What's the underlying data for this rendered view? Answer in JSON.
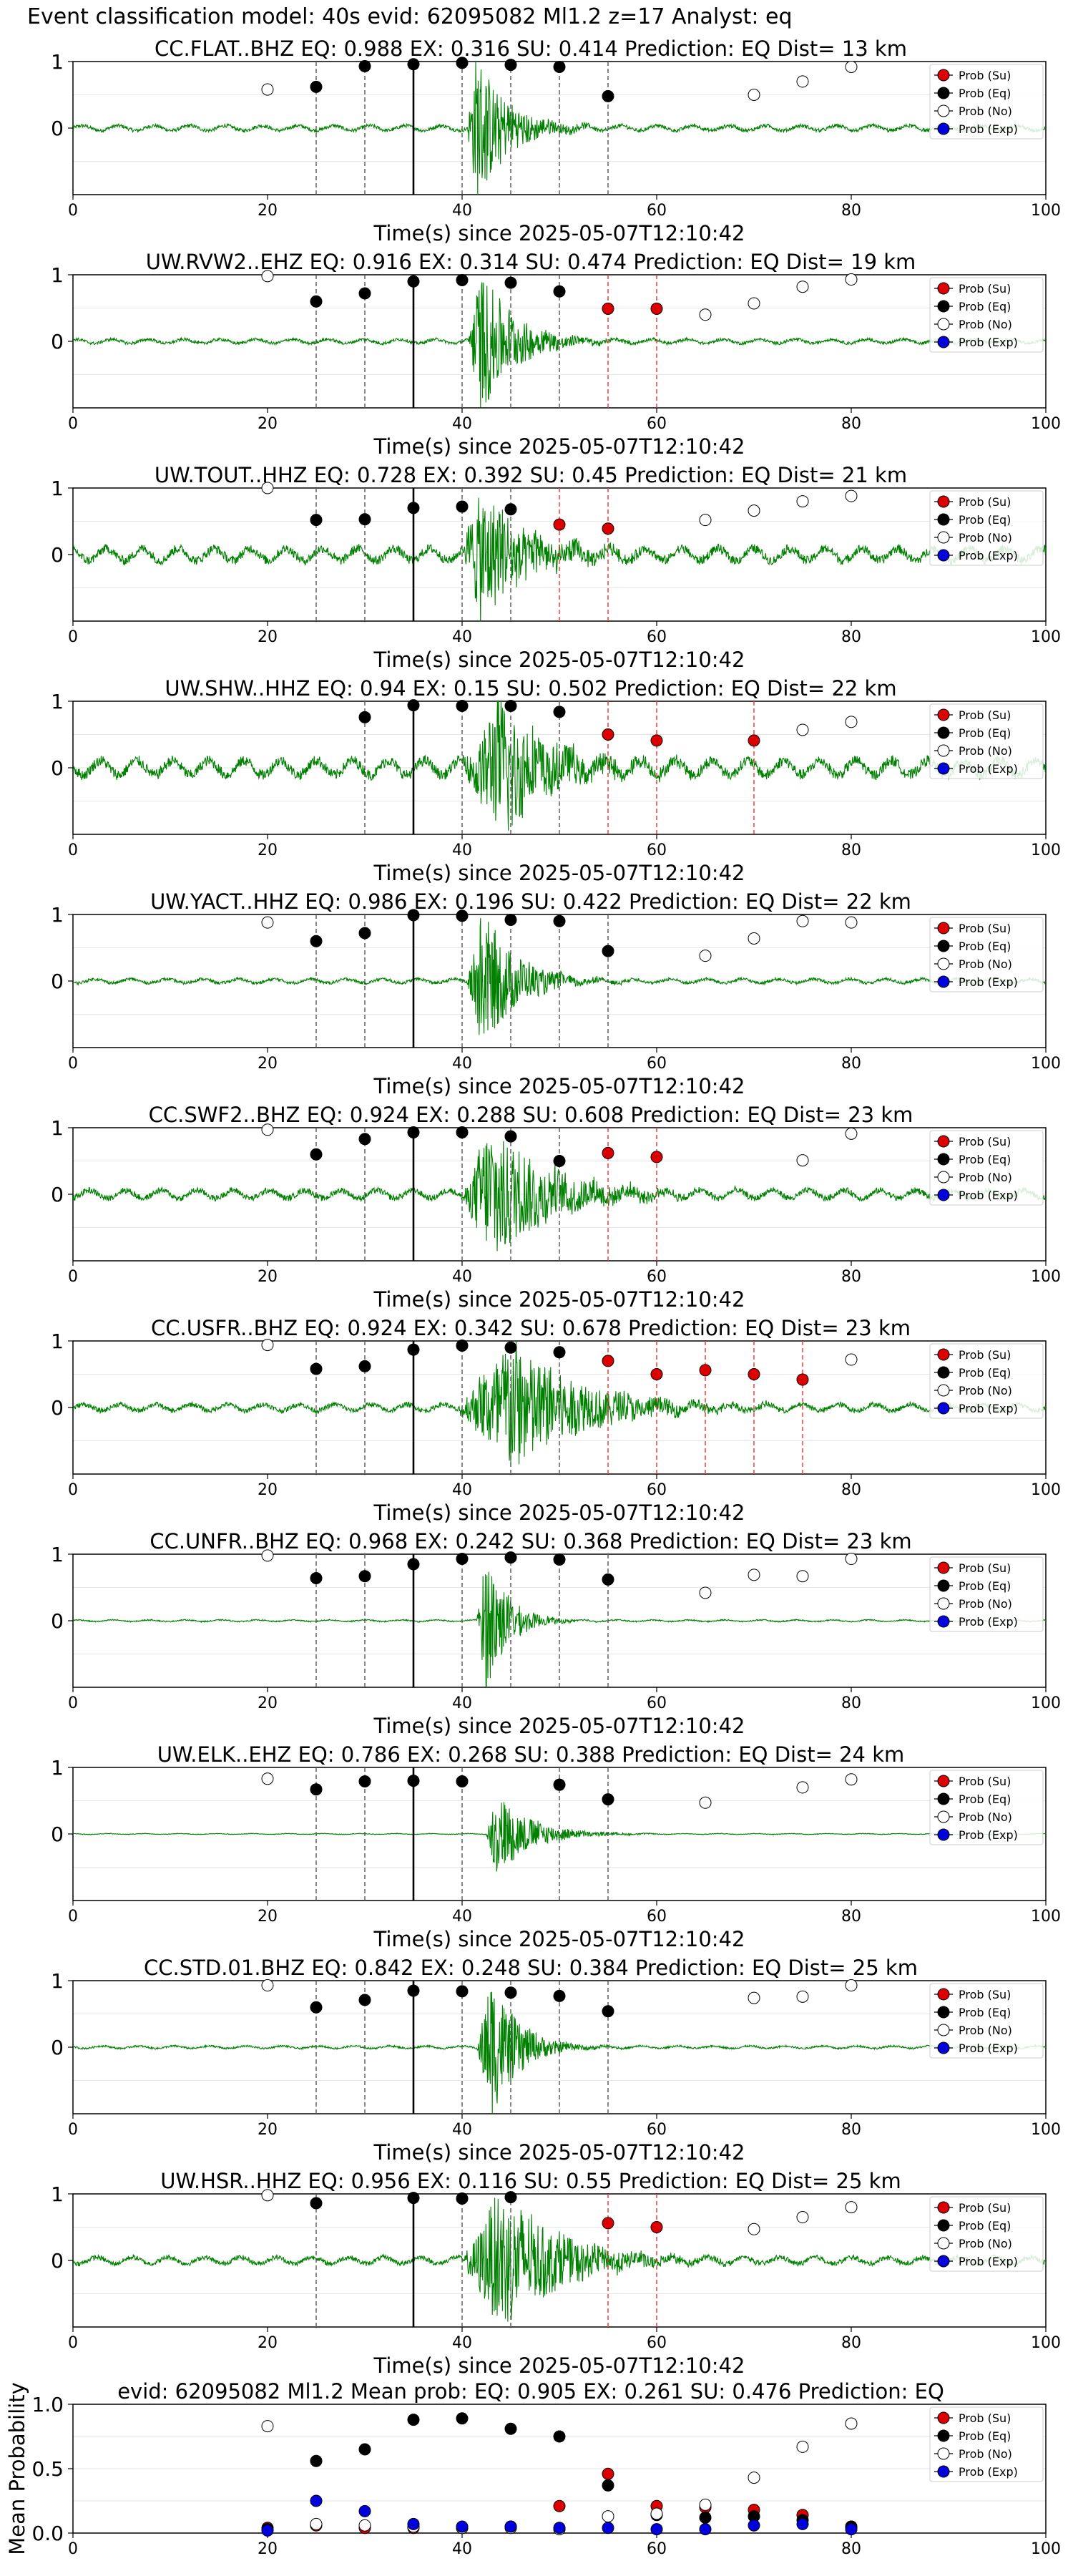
{
  "figure": {
    "title": "Event classification model: 40s evid: 62095082 Ml1.2 z=17 Analyst: eq"
  },
  "colors": {
    "waveform": "#008000",
    "su": "#dd0000",
    "eq": "#000000",
    "no": "#ffffff",
    "exp": "#0000dd",
    "eq_line": "#555555",
    "su_line": "#ee3333",
    "p_line": "#000000"
  },
  "legend": {
    "placement": "top-right",
    "entries": [
      "Prob (Su)",
      "Prob (Eq)",
      "Prob (No)",
      "Prob (Exp)"
    ]
  },
  "chart_data": [
    {
      "type": "scatter",
      "title": "CC.FLAT..BHZ   EQ: 0.988  EX: 0.316  SU: 0.414   Prediction: EQ    Dist= 13 km",
      "xlabel": "Time(s) since 2025-05-07T12:10:42",
      "xlim": [
        0,
        100
      ],
      "ylim": [
        -1,
        1
      ],
      "yticks": [
        "1",
        "0"
      ],
      "xticks": [
        "0",
        "20",
        "40",
        "60",
        "80",
        "100"
      ],
      "grid": "horizontal",
      "p_arrival": 35,
      "burst": {
        "start": 40.5,
        "peak": 41.5,
        "amp": 1.05,
        "decay": 3.2,
        "noise": 0.06
      },
      "eq_points": [
        [
          25,
          0.62
        ],
        [
          30,
          0.93
        ],
        [
          35,
          0.96
        ],
        [
          40,
          0.98
        ],
        [
          45,
          0.95
        ],
        [
          50,
          0.92
        ],
        [
          55,
          0.48
        ]
      ],
      "su_points": [],
      "no_points": [
        [
          20,
          0.58
        ],
        [
          70,
          0.5
        ],
        [
          75,
          0.7
        ],
        [
          80,
          0.92
        ]
      ],
      "eq_lines": [
        25,
        30,
        40,
        45,
        50,
        55
      ],
      "su_lines": []
    },
    {
      "type": "scatter",
      "title": "UW.RVW2..EHZ   EQ: 0.916  EX: 0.314  SU: 0.474   Prediction: EQ    Dist= 19 km",
      "xlabel": "Time(s) since 2025-05-07T12:10:42",
      "xlim": [
        0,
        100
      ],
      "ylim": [
        -1,
        1
      ],
      "yticks": [
        "1",
        "0"
      ],
      "xticks": [
        "0",
        "20",
        "40",
        "60",
        "80",
        "100"
      ],
      "grid": "horizontal",
      "p_arrival": 35,
      "burst": {
        "start": 40.5,
        "peak": 42,
        "amp": 1.0,
        "decay": 3.5,
        "noise": 0.05
      },
      "eq_points": [
        [
          25,
          0.6
        ],
        [
          30,
          0.72
        ],
        [
          35,
          0.9
        ],
        [
          40,
          0.92
        ],
        [
          45,
          0.88
        ],
        [
          50,
          0.75
        ]
      ],
      "su_points": [
        [
          55,
          0.49
        ],
        [
          60,
          0.49
        ]
      ],
      "no_points": [
        [
          20,
          0.98
        ],
        [
          65,
          0.4
        ],
        [
          70,
          0.57
        ],
        [
          75,
          0.82
        ],
        [
          80,
          0.93
        ]
      ],
      "eq_lines": [
        25,
        30,
        40,
        45,
        50
      ],
      "su_lines": [
        55,
        60
      ]
    },
    {
      "type": "scatter",
      "title": "UW.TOUT..HHZ   EQ: 0.728  EX: 0.392  SU: 0.45   Prediction: EQ    Dist= 21 km",
      "xlabel": "Time(s) since 2025-05-07T12:10:42",
      "xlim": [
        0,
        100
      ],
      "ylim": [
        -1,
        1
      ],
      "yticks": [
        "1",
        "0"
      ],
      "xticks": [
        "0",
        "20",
        "40",
        "60",
        "80",
        "100"
      ],
      "grid": "horizontal",
      "p_arrival": 35,
      "burst": {
        "start": 40,
        "peak": 42,
        "amp": 1.0,
        "decay": 4.5,
        "noise": 0.15
      },
      "eq_points": [
        [
          25,
          0.52
        ],
        [
          30,
          0.53
        ],
        [
          35,
          0.7
        ],
        [
          40,
          0.72
        ],
        [
          45,
          0.68
        ]
      ],
      "su_points": [
        [
          50,
          0.45
        ],
        [
          55,
          0.39
        ]
      ],
      "no_points": [
        [
          20,
          1.0
        ],
        [
          65,
          0.52
        ],
        [
          70,
          0.66
        ],
        [
          75,
          0.8
        ],
        [
          80,
          0.88
        ]
      ],
      "eq_lines": [
        25,
        30,
        40,
        45
      ],
      "su_lines": [
        50,
        55
      ]
    },
    {
      "type": "scatter",
      "title": "UW.SHW..HHZ   EQ: 0.94  EX: 0.15  SU: 0.502   Prediction: EQ    Dist= 22 km",
      "xlabel": "Time(s) since 2025-05-07T12:10:42",
      "xlim": [
        0,
        100
      ],
      "ylim": [
        -1,
        1
      ],
      "yticks": [
        "1",
        "0"
      ],
      "xticks": [
        "0",
        "20",
        "40",
        "60",
        "80",
        "100"
      ],
      "grid": "horizontal",
      "p_arrival": 35,
      "burst": {
        "start": 40,
        "peak": 44,
        "amp": 1.0,
        "decay": 5,
        "noise": 0.18
      },
      "eq_points": [
        [
          30,
          0.76
        ],
        [
          35,
          0.94
        ],
        [
          40,
          0.93
        ],
        [
          45,
          0.93
        ],
        [
          50,
          0.84
        ]
      ],
      "su_points": [
        [
          55,
          0.5
        ],
        [
          60,
          0.41
        ],
        [
          70,
          0.41
        ]
      ],
      "no_points": [
        [
          75,
          0.57
        ],
        [
          80,
          0.69
        ]
      ],
      "eq_lines": [
        30,
        40,
        45,
        50
      ],
      "su_lines": [
        55,
        60,
        70
      ]
    },
    {
      "type": "scatter",
      "title": "UW.YACT..HHZ   EQ: 0.986  EX: 0.196  SU: 0.422   Prediction: EQ    Dist= 22 km",
      "xlabel": "Time(s) since 2025-05-07T12:10:42",
      "xlim": [
        0,
        100
      ],
      "ylim": [
        -1,
        1
      ],
      "yticks": [
        "1",
        "0"
      ],
      "xticks": [
        "0",
        "20",
        "40",
        "60",
        "80",
        "100"
      ],
      "grid": "horizontal",
      "p_arrival": 35,
      "burst": {
        "start": 40.5,
        "peak": 42,
        "amp": 1.0,
        "decay": 3.5,
        "noise": 0.05
      },
      "eq_points": [
        [
          25,
          0.6
        ],
        [
          30,
          0.72
        ],
        [
          35,
          0.99
        ],
        [
          40,
          0.98
        ],
        [
          45,
          0.92
        ],
        [
          50,
          0.9
        ],
        [
          55,
          0.45
        ]
      ],
      "su_points": [],
      "no_points": [
        [
          20,
          0.88
        ],
        [
          65,
          0.38
        ],
        [
          70,
          0.64
        ],
        [
          75,
          0.9
        ],
        [
          80,
          0.88
        ]
      ],
      "eq_lines": [
        25,
        30,
        40,
        45,
        50,
        55
      ],
      "su_lines": []
    },
    {
      "type": "scatter",
      "title": "CC.SWF2..BHZ   EQ: 0.924  EX: 0.288  SU: 0.608   Prediction: EQ    Dist= 23 km",
      "xlabel": "Time(s) since 2025-05-07T12:10:42",
      "xlim": [
        0,
        100
      ],
      "ylim": [
        -1,
        1
      ],
      "yticks": [
        "1",
        "0"
      ],
      "xticks": [
        "0",
        "20",
        "40",
        "60",
        "80",
        "100"
      ],
      "grid": "horizontal",
      "p_arrival": 35,
      "burst": {
        "start": 40,
        "peak": 43,
        "amp": 1.0,
        "decay": 6,
        "noise": 0.1
      },
      "eq_points": [
        [
          25,
          0.6
        ],
        [
          30,
          0.83
        ],
        [
          35,
          0.93
        ],
        [
          40,
          0.93
        ],
        [
          45,
          0.87
        ],
        [
          50,
          0.5
        ]
      ],
      "su_points": [
        [
          55,
          0.62
        ],
        [
          60,
          0.56
        ]
      ],
      "no_points": [
        [
          20,
          0.97
        ],
        [
          75,
          0.51
        ],
        [
          80,
          0.91
        ]
      ],
      "eq_lines": [
        25,
        30,
        40,
        45,
        50
      ],
      "su_lines": [
        55,
        60
      ]
    },
    {
      "type": "scatter",
      "title": "CC.USFR..BHZ   EQ: 0.924  EX: 0.342  SU: 0.678   Prediction: EQ    Dist= 23 km",
      "xlabel": "Time(s) since 2025-05-07T12:10:42",
      "xlim": [
        0,
        100
      ],
      "ylim": [
        -1,
        1
      ],
      "yticks": [
        "1",
        "0"
      ],
      "xticks": [
        "0",
        "20",
        "40",
        "60",
        "80",
        "100"
      ],
      "grid": "horizontal",
      "p_arrival": 35,
      "burst": {
        "start": 39.5,
        "peak": 45,
        "amp": 1.0,
        "decay": 7,
        "noise": 0.08
      },
      "eq_points": [
        [
          25,
          0.58
        ],
        [
          30,
          0.62
        ],
        [
          35,
          0.87
        ],
        [
          40,
          0.93
        ],
        [
          45,
          0.9
        ],
        [
          50,
          0.83
        ]
      ],
      "su_points": [
        [
          55,
          0.7
        ],
        [
          60,
          0.5
        ],
        [
          65,
          0.56
        ],
        [
          70,
          0.5
        ],
        [
          75,
          0.42
        ]
      ],
      "no_points": [
        [
          20,
          0.94
        ],
        [
          80,
          0.72
        ]
      ],
      "eq_lines": [
        25,
        30,
        40,
        45,
        50
      ],
      "su_lines": [
        55,
        60,
        65,
        70,
        75
      ]
    },
    {
      "type": "scatter",
      "title": "CC.UNFR..BHZ   EQ: 0.968  EX: 0.242  SU: 0.368   Prediction: EQ    Dist= 23 km",
      "xlabel": "Time(s) since 2025-05-07T12:10:42",
      "xlim": [
        0,
        100
      ],
      "ylim": [
        -1,
        1
      ],
      "yticks": [
        "1",
        "0"
      ],
      "xticks": [
        "0",
        "20",
        "40",
        "60",
        "80",
        "100"
      ],
      "grid": "horizontal",
      "p_arrival": 35,
      "burst": {
        "start": 41.5,
        "peak": 42.5,
        "amp": 1.0,
        "decay": 2.2,
        "noise": 0.02
      },
      "eq_points": [
        [
          25,
          0.64
        ],
        [
          30,
          0.67
        ],
        [
          35,
          0.85
        ],
        [
          40,
          0.93
        ],
        [
          45,
          0.95
        ],
        [
          50,
          0.92
        ],
        [
          55,
          0.62
        ]
      ],
      "su_points": [],
      "no_points": [
        [
          20,
          0.98
        ],
        [
          65,
          0.42
        ],
        [
          70,
          0.69
        ],
        [
          75,
          0.67
        ],
        [
          80,
          0.93
        ]
      ],
      "eq_lines": [
        25,
        30,
        40,
        45,
        50,
        55
      ],
      "su_lines": []
    },
    {
      "type": "scatter",
      "title": "UW.ELK..EHZ   EQ: 0.786  EX: 0.268  SU: 0.388   Prediction: EQ    Dist= 24 km",
      "xlabel": "Time(s) since 2025-05-07T12:10:42",
      "xlim": [
        0,
        100
      ],
      "ylim": [
        -1,
        1
      ],
      "yticks": [
        "1",
        "0"
      ],
      "xticks": [
        "0",
        "20",
        "40",
        "60",
        "80",
        "100"
      ],
      "grid": "horizontal",
      "p_arrival": 35,
      "burst": {
        "start": 42.5,
        "peak": 43.5,
        "amp": 0.6,
        "decay": 3.5,
        "noise": 0.01
      },
      "eq_points": [
        [
          25,
          0.67
        ],
        [
          30,
          0.79
        ],
        [
          35,
          0.8
        ],
        [
          40,
          0.79
        ],
        [
          50,
          0.74
        ],
        [
          55,
          0.52
        ]
      ],
      "su_points": [],
      "no_points": [
        [
          20,
          0.83
        ],
        [
          65,
          0.47
        ],
        [
          75,
          0.7
        ],
        [
          80,
          0.82
        ]
      ],
      "eq_lines": [
        25,
        30,
        40,
        50,
        55
      ],
      "su_lines": []
    },
    {
      "type": "scatter",
      "title": "CC.STD.01.BHZ   EQ: 0.842  EX: 0.248  SU: 0.384   Prediction: EQ    Dist= 25 km",
      "xlabel": "Time(s) since 2025-05-07T12:10:42",
      "xlim": [
        0,
        100
      ],
      "ylim": [
        -1,
        1
      ],
      "yticks": [
        "1",
        "0"
      ],
      "xticks": [
        "0",
        "20",
        "40",
        "60",
        "80",
        "100"
      ],
      "grid": "horizontal",
      "p_arrival": 35,
      "burst": {
        "start": 41.5,
        "peak": 43,
        "amp": 1.0,
        "decay": 2.8,
        "noise": 0.03
      },
      "eq_points": [
        [
          25,
          0.6
        ],
        [
          30,
          0.71
        ],
        [
          35,
          0.85
        ],
        [
          40,
          0.84
        ],
        [
          45,
          0.82
        ],
        [
          50,
          0.77
        ],
        [
          55,
          0.54
        ]
      ],
      "su_points": [],
      "no_points": [
        [
          20,
          0.93
        ],
        [
          70,
          0.74
        ],
        [
          75,
          0.76
        ],
        [
          80,
          0.93
        ]
      ],
      "eq_lines": [
        25,
        30,
        40,
        45,
        50,
        55
      ],
      "su_lines": []
    },
    {
      "type": "scatter",
      "title": "UW.HSR..HHZ   EQ: 0.956  EX: 0.116  SU: 0.55   Prediction: EQ    Dist= 25 km",
      "xlabel": "Time(s) since 2025-05-07T12:10:42",
      "xlim": [
        0,
        100
      ],
      "ylim": [
        -1,
        1
      ],
      "yticks": [
        "1",
        "0"
      ],
      "xticks": [
        "0",
        "20",
        "40",
        "60",
        "80",
        "100"
      ],
      "grid": "horizontal",
      "p_arrival": 35,
      "burst": {
        "start": 40,
        "peak": 44,
        "amp": 1.0,
        "decay": 6,
        "noise": 0.08
      },
      "eq_points": [
        [
          25,
          0.86
        ],
        [
          35,
          0.94
        ],
        [
          40,
          0.93
        ],
        [
          45,
          0.95
        ]
      ],
      "su_points": [
        [
          55,
          0.56
        ],
        [
          60,
          0.5
        ]
      ],
      "no_points": [
        [
          20,
          0.98
        ],
        [
          70,
          0.47
        ],
        [
          75,
          0.65
        ],
        [
          80,
          0.8
        ]
      ],
      "eq_lines": [
        25,
        40,
        45
      ],
      "su_lines": [
        55,
        60
      ]
    },
    {
      "type": "scatter",
      "title": "evid: 62095082  Ml1.2   Mean prob:   EQ: 0.905  EX: 0.261  SU: 0.476   Prediction: EQ",
      "ylabel": "Mean Probability",
      "xlim": [
        0,
        100
      ],
      "ylim": [
        0,
        1
      ],
      "yticks": [
        "1.0",
        "0.5",
        "0.0"
      ],
      "xticks": [
        "0",
        "20",
        "40",
        "60",
        "80",
        "100"
      ],
      "grid": "horizontal",
      "times": [
        20,
        25,
        30,
        35,
        40,
        45,
        50,
        55,
        60,
        65,
        70,
        75,
        80
      ],
      "series": [
        {
          "name": "Prob (Su)",
          "values": [
            0.04,
            0.06,
            0.04,
            0.04,
            0.04,
            0.05,
            0.21,
            0.46,
            0.21,
            0.2,
            0.18,
            0.14,
            0.05
          ]
        },
        {
          "name": "Prob (Eq)",
          "values": [
            0.03,
            0.56,
            0.65,
            0.88,
            0.89,
            0.81,
            0.75,
            0.37,
            0.14,
            0.12,
            0.13,
            0.1,
            0.05
          ]
        },
        {
          "name": "Prob (No)",
          "values": [
            0.83,
            0.07,
            0.06,
            0.05,
            0.04,
            0.04,
            0.03,
            0.13,
            0.15,
            0.22,
            0.43,
            0.67,
            0.85
          ]
        },
        {
          "name": "Prob (Exp)",
          "values": [
            0.02,
            0.25,
            0.17,
            0.07,
            0.05,
            0.05,
            0.04,
            0.04,
            0.03,
            0.03,
            0.06,
            0.07,
            0.03
          ]
        }
      ]
    }
  ]
}
